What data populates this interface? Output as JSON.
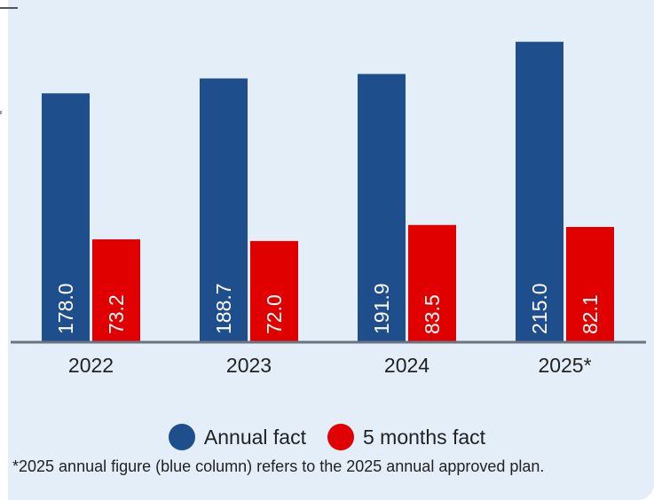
{
  "chart_data": {
    "type": "bar",
    "categories": [
      "2022",
      "2023",
      "2024",
      "2025*"
    ],
    "series": [
      {
        "name": "Annual fact",
        "color": "#1f4e8c",
        "values": [
          178.0,
          188.7,
          191.9,
          215.0
        ]
      },
      {
        "name": "5 months fact",
        "color": "#e00000",
        "values": [
          73.2,
          72.0,
          83.5,
          82.1
        ]
      }
    ],
    "data_labels": [
      [
        "178.0",
        "188.7",
        "191.9",
        "215.0"
      ],
      [
        "73.2",
        "72.0",
        "83.5",
        "82.1"
      ]
    ],
    "ylim": [
      0,
      245
    ],
    "grid": false,
    "legend": "bottom-center"
  },
  "footnote": "*2025 annual figure (blue column) refers to the 2025 annual approved plan."
}
